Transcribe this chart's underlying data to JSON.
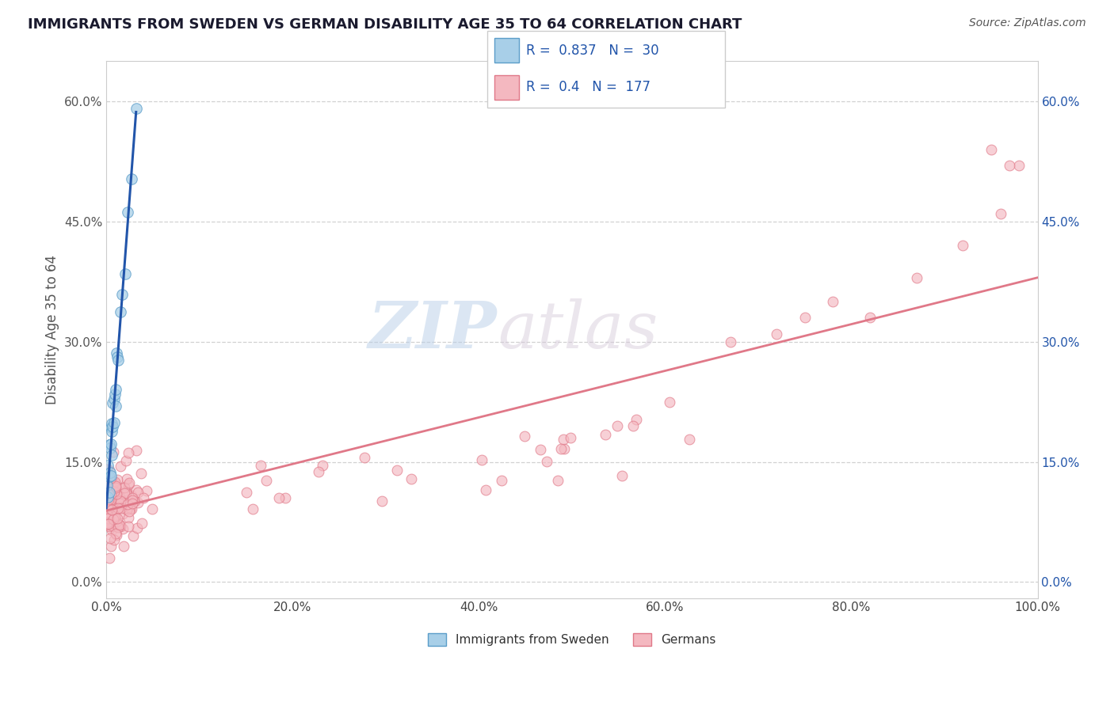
{
  "title": "IMMIGRANTS FROM SWEDEN VS GERMAN DISABILITY AGE 35 TO 64 CORRELATION CHART",
  "source": "Source: ZipAtlas.com",
  "ylabel": "Disability Age 35 to 64",
  "watermark_zip": "ZIP",
  "watermark_atlas": "atlas",
  "xlim": [
    0.0,
    1.0
  ],
  "ylim": [
    -0.02,
    0.65
  ],
  "xticks": [
    0.0,
    0.2,
    0.4,
    0.6,
    0.8,
    1.0
  ],
  "xticklabels": [
    "0.0%",
    "20.0%",
    "40.0%",
    "60.0%",
    "80.0%",
    "100.0%"
  ],
  "yticks": [
    0.0,
    0.15,
    0.3,
    0.45,
    0.6
  ],
  "yticklabels": [
    "0.0%",
    "15.0%",
    "30.0%",
    "45.0%",
    "60.0%"
  ],
  "sweden_color": "#a8cfe8",
  "sweden_edge": "#5b9dc9",
  "german_color": "#f4b8c0",
  "german_edge": "#e07888",
  "sweden_line_color": "#2255aa",
  "german_line_color": "#e07888",
  "sweden_R": 0.837,
  "sweden_N": 30,
  "german_R": 0.4,
  "german_N": 177,
  "legend_label_sweden": "Immigrants from Sweden",
  "legend_label_german": "Germans",
  "title_color": "#1a1a2e",
  "source_color": "#555555",
  "grid_color": "#cccccc",
  "background_color": "#ffffff",
  "legend_text_color": "#2255aa"
}
